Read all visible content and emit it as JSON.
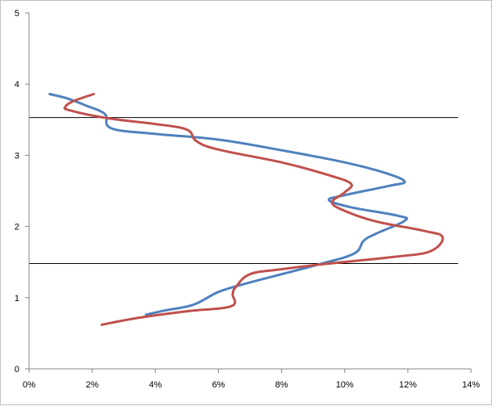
{
  "chart_data": {
    "type": "line",
    "title": "",
    "xlabel": "",
    "ylabel": "",
    "xlim": [
      0,
      14
    ],
    "ylim": [
      0,
      5
    ],
    "x_ticks": [
      0,
      2,
      4,
      6,
      8,
      10,
      12,
      14
    ],
    "x_tick_labels": [
      "0%",
      "2%",
      "4%",
      "6%",
      "8%",
      "10%",
      "12%",
      "14%"
    ],
    "y_ticks": [
      0,
      1,
      2,
      3,
      4,
      5
    ],
    "y_tick_labels": [
      "0",
      "1",
      "2",
      "3",
      "4",
      "5"
    ],
    "grid": false,
    "legend": "none",
    "reference_lines_y": [
      3.53,
      1.48
    ],
    "reference_line_color": "#000000",
    "series": [
      {
        "color": "#4F81BD",
        "points": [
          [
            3.7,
            0.76
          ],
          [
            4.3,
            0.82
          ],
          [
            5.2,
            0.9
          ],
          [
            6.0,
            1.08
          ],
          [
            6.8,
            1.19
          ],
          [
            8.0,
            1.33
          ],
          [
            9.2,
            1.47
          ],
          [
            10.3,
            1.62
          ],
          [
            10.6,
            1.8
          ],
          [
            11.0,
            1.9
          ],
          [
            11.9,
            2.08
          ],
          [
            11.7,
            2.15
          ],
          [
            10.2,
            2.27
          ],
          [
            9.5,
            2.37
          ],
          [
            10.0,
            2.44
          ],
          [
            11.4,
            2.57
          ],
          [
            11.9,
            2.63
          ],
          [
            11.3,
            2.75
          ],
          [
            10.0,
            2.9
          ],
          [
            8.0,
            3.07
          ],
          [
            6.0,
            3.22
          ],
          [
            4.0,
            3.3
          ],
          [
            2.6,
            3.38
          ],
          [
            2.4,
            3.58
          ],
          [
            1.8,
            3.7
          ],
          [
            1.2,
            3.8
          ],
          [
            0.65,
            3.86
          ]
        ]
      },
      {
        "color": "#C0504D",
        "points": [
          [
            2.3,
            0.62
          ],
          [
            3.5,
            0.72
          ],
          [
            5.0,
            0.81
          ],
          [
            6.4,
            0.88
          ],
          [
            6.45,
            1.05
          ],
          [
            6.55,
            1.15
          ],
          [
            7.0,
            1.33
          ],
          [
            8.0,
            1.4
          ],
          [
            9.5,
            1.48
          ],
          [
            11.5,
            1.57
          ],
          [
            12.7,
            1.65
          ],
          [
            13.1,
            1.85
          ],
          [
            12.5,
            1.94
          ],
          [
            11.0,
            2.07
          ],
          [
            10.0,
            2.22
          ],
          [
            9.6,
            2.34
          ],
          [
            10.0,
            2.48
          ],
          [
            10.2,
            2.6
          ],
          [
            9.5,
            2.72
          ],
          [
            8.0,
            2.9
          ],
          [
            6.0,
            3.08
          ],
          [
            5.3,
            3.2
          ],
          [
            5.0,
            3.36
          ],
          [
            4.0,
            3.44
          ],
          [
            2.5,
            3.52
          ],
          [
            1.3,
            3.63
          ],
          [
            1.15,
            3.68
          ],
          [
            1.4,
            3.76
          ],
          [
            2.05,
            3.86
          ]
        ]
      }
    ]
  }
}
